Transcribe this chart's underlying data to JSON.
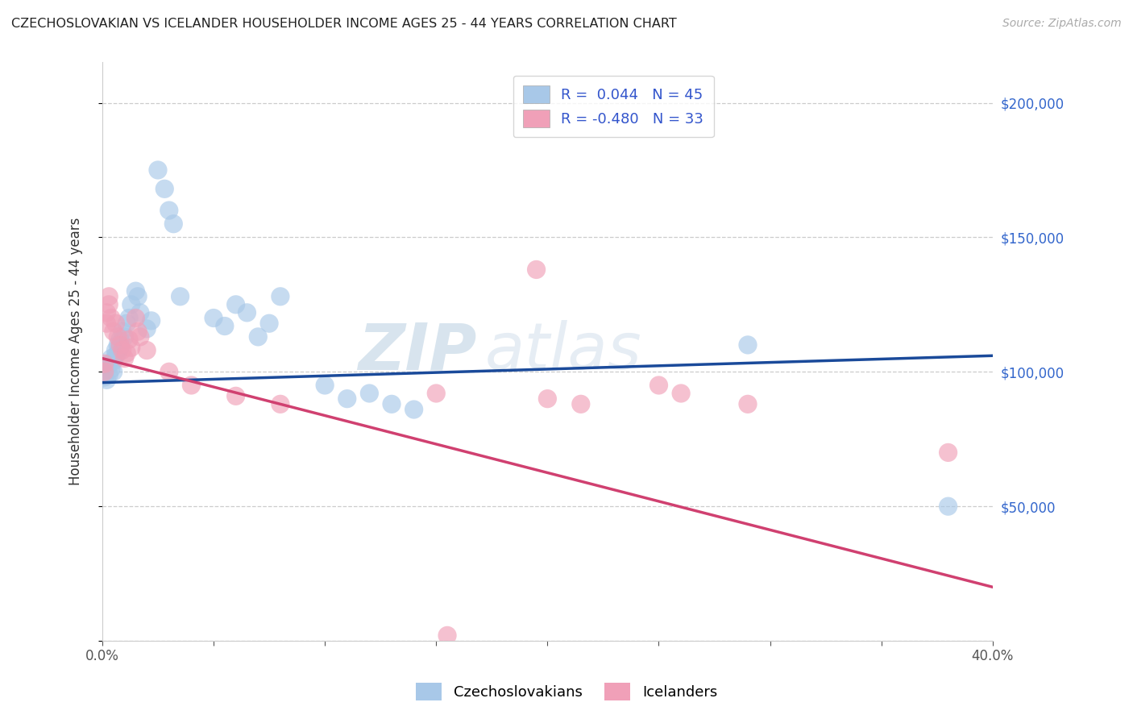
{
  "title": "CZECHOSLOVAKIAN VS ICELANDER HOUSEHOLDER INCOME AGES 25 - 44 YEARS CORRELATION CHART",
  "source": "Source: ZipAtlas.com",
  "ylabel": "Householder Income Ages 25 - 44 years",
  "xlim": [
    0.0,
    0.4
  ],
  "ylim": [
    0,
    215000
  ],
  "xticks": [
    0.0,
    0.05,
    0.1,
    0.15,
    0.2,
    0.25,
    0.3,
    0.35,
    0.4
  ],
  "xtick_labels": [
    "0.0%",
    "",
    "",
    "",
    "",
    "",
    "",
    "",
    "40.0%"
  ],
  "ytick_positions": [
    0,
    50000,
    100000,
    150000,
    200000
  ],
  "right_ytick_labels": [
    "$200,000",
    "$150,000",
    "$100,000",
    "$50,000"
  ],
  "right_ytick_positions": [
    200000,
    150000,
    100000,
    50000
  ],
  "legend_blue_r": "R =  0.044",
  "legend_blue_n": "N = 45",
  "legend_pink_r": "R = -0.480",
  "legend_pink_n": "N = 33",
  "blue_color": "#a8c8e8",
  "pink_color": "#f0a0b8",
  "blue_line_color": "#1a4a9a",
  "pink_line_color": "#d04070",
  "legend_text_color": "#3355cc",
  "watermark_zip": "ZIP",
  "watermark_atlas": "atlas",
  "czech_x": [
    0.001,
    0.001,
    0.002,
    0.002,
    0.003,
    0.003,
    0.004,
    0.004,
    0.005,
    0.005,
    0.006,
    0.006,
    0.007,
    0.007,
    0.008,
    0.008,
    0.009,
    0.01,
    0.011,
    0.012,
    0.013,
    0.015,
    0.016,
    0.017,
    0.02,
    0.022,
    0.025,
    0.028,
    0.03,
    0.032,
    0.035,
    0.05,
    0.055,
    0.06,
    0.065,
    0.07,
    0.075,
    0.08,
    0.1,
    0.11,
    0.12,
    0.13,
    0.14,
    0.29,
    0.38
  ],
  "czech_y": [
    98000,
    100000,
    102000,
    97000,
    103000,
    99000,
    105000,
    101000,
    100000,
    104000,
    108000,
    106000,
    110000,
    107000,
    112000,
    109000,
    115000,
    113000,
    118000,
    120000,
    125000,
    130000,
    128000,
    122000,
    116000,
    119000,
    175000,
    168000,
    160000,
    155000,
    128000,
    120000,
    117000,
    125000,
    122000,
    113000,
    118000,
    128000,
    95000,
    90000,
    92000,
    88000,
    86000,
    110000,
    50000
  ],
  "icelander_x": [
    0.001,
    0.001,
    0.002,
    0.002,
    0.003,
    0.003,
    0.004,
    0.005,
    0.006,
    0.007,
    0.008,
    0.009,
    0.01,
    0.011,
    0.012,
    0.013,
    0.015,
    0.016,
    0.017,
    0.02,
    0.03,
    0.04,
    0.06,
    0.08,
    0.15,
    0.2,
    0.215,
    0.25,
    0.26,
    0.29,
    0.195,
    0.38,
    0.155
  ],
  "icelander_y": [
    100000,
    103000,
    118000,
    122000,
    128000,
    125000,
    120000,
    115000,
    118000,
    113000,
    110000,
    108000,
    105000,
    107000,
    112000,
    109000,
    120000,
    115000,
    113000,
    108000,
    100000,
    95000,
    91000,
    88000,
    92000,
    90000,
    88000,
    95000,
    92000,
    88000,
    138000,
    70000,
    2000
  ]
}
